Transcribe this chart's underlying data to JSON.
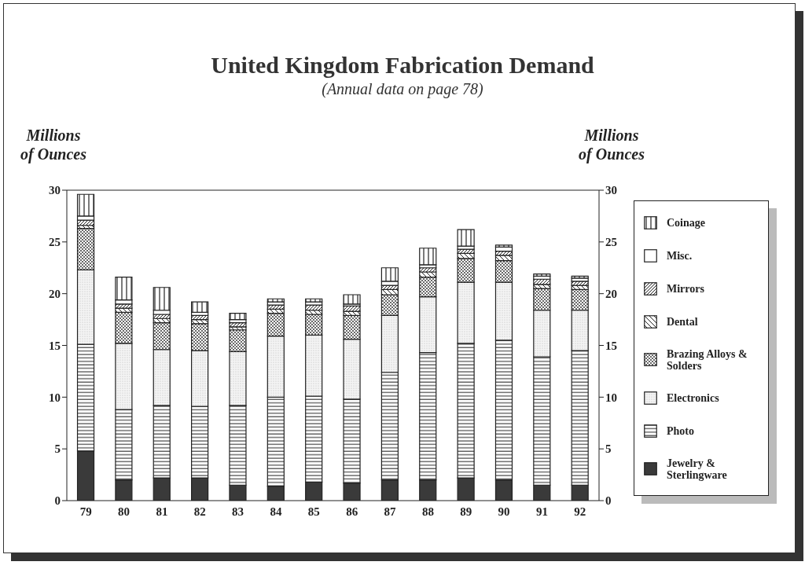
{
  "chart_data": {
    "type": "bar",
    "title": "United Kingdom Fabrication Demand",
    "subtitle": "(Annual data on page 78)",
    "ylabel": "Millions of Ounces",
    "y2label": "Millions of Ounces",
    "categories": [
      "79",
      "80",
      "81",
      "82",
      "83",
      "84",
      "85",
      "86",
      "87",
      "88",
      "89",
      "90",
      "91",
      "92"
    ],
    "stacked": true,
    "legend": "right",
    "ylim": [
      0,
      30
    ],
    "yticks": [
      0,
      5,
      10,
      15,
      20,
      25,
      30
    ],
    "y2lim": [
      0,
      30
    ],
    "y2ticks": [
      0,
      5,
      10,
      15,
      20,
      25,
      30
    ],
    "series": [
      {
        "name": "Jewelry & Sterlingware",
        "color": "#3a3a3a",
        "values": [
          4.8,
          2.0,
          2.2,
          2.2,
          1.5,
          1.4,
          1.8,
          1.7,
          2.0,
          2.0,
          2.2,
          2.0,
          1.5,
          1.5
        ]
      },
      {
        "name": "Photo",
        "color": "#222222",
        "values": [
          10.3,
          6.8,
          7.0,
          6.9,
          7.7,
          8.6,
          8.3,
          8.1,
          10.4,
          12.3,
          13.0,
          13.5,
          12.4,
          13.0
        ]
      },
      {
        "name": "Electronics",
        "color": "#222222",
        "values": [
          7.2,
          6.4,
          5.4,
          5.4,
          5.2,
          5.9,
          5.9,
          5.8,
          5.5,
          5.4,
          5.9,
          5.6,
          4.5,
          3.9
        ]
      },
      {
        "name": "Brazing Alloys & Solders",
        "color": "#222222",
        "values": [
          4.0,
          3.0,
          2.6,
          2.6,
          2.1,
          2.2,
          2.0,
          2.3,
          2.0,
          1.9,
          2.3,
          2.1,
          2.1,
          2.0
        ]
      },
      {
        "name": "Dental",
        "color": "#222222",
        "values": [
          0.3,
          0.4,
          0.4,
          0.4,
          0.3,
          0.4,
          0.4,
          0.4,
          0.5,
          0.5,
          0.5,
          0.5,
          0.4,
          0.4
        ]
      },
      {
        "name": "Mirrors",
        "color": "#222222",
        "values": [
          0.5,
          0.4,
          0.4,
          0.4,
          0.4,
          0.4,
          0.5,
          0.5,
          0.4,
          0.4,
          0.4,
          0.4,
          0.5,
          0.4
        ]
      },
      {
        "name": "Misc.",
        "color": "#ffffff",
        "values": [
          0.4,
          0.4,
          0.4,
          0.3,
          0.3,
          0.3,
          0.3,
          0.2,
          0.4,
          0.3,
          0.3,
          0.4,
          0.3,
          0.3
        ]
      },
      {
        "name": "Coinage",
        "color": "#222222",
        "values": [
          2.1,
          2.2,
          2.2,
          1.0,
          0.6,
          0.3,
          0.3,
          0.9,
          1.3,
          1.6,
          1.6,
          0.2,
          0.2,
          0.2
        ]
      }
    ]
  }
}
